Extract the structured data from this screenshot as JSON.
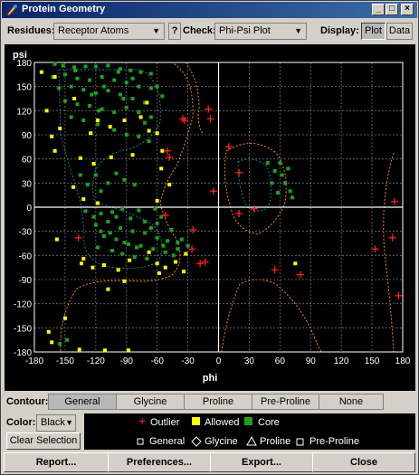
{
  "window": {
    "title": "Protein Geometry"
  },
  "toolbar": {
    "residues_label": "Residues:",
    "residues_value": "Receptor Atoms",
    "help_label": "?",
    "check_label": "Check:",
    "check_value": "Phi-Psi Plot",
    "display_label": "Display:",
    "display_plot": "Plot",
    "display_data": "Data",
    "display_selected": "Plot"
  },
  "chart_data": {
    "type": "scatter",
    "title": "",
    "xlabel": "phi",
    "ylabel": "psi",
    "xlim": [
      -180,
      180
    ],
    "ylim": [
      -180,
      180
    ],
    "xticks": [
      -180,
      -150,
      -120,
      -90,
      -60,
      -30,
      0,
      30,
      60,
      90,
      120,
      150,
      180
    ],
    "yticks": [
      180,
      150,
      120,
      90,
      60,
      30,
      0,
      -30,
      -60,
      -90,
      -120,
      -150,
      -180
    ],
    "grid": true,
    "colors": {
      "core": "#1fa01f",
      "allowed": "#ffff00",
      "outlier": "#ff2020",
      "axis": "#ffffff"
    },
    "series": [
      {
        "name": "Outlier",
        "marker": "plus",
        "points": [
          [
            -137,
            -38
          ],
          [
            -35,
            110
          ],
          [
            -33,
            108
          ],
          [
            -8,
            110
          ],
          [
            -10,
            122
          ],
          [
            -50,
            70
          ],
          [
            -48,
            62
          ],
          [
            -26,
            -52
          ],
          [
            -18,
            -70
          ],
          [
            -13,
            -68
          ],
          [
            -52,
            -10
          ],
          [
            -25,
            -28
          ],
          [
            10,
            75
          ],
          [
            20,
            43
          ],
          [
            -5,
            20
          ],
          [
            35,
            -2
          ],
          [
            20,
            -8
          ],
          [
            55,
            -78
          ],
          [
            80,
            -84
          ],
          [
            153,
            -52
          ],
          [
            170,
            -38
          ],
          [
            172,
            7
          ],
          [
            176,
            -110
          ]
        ]
      },
      {
        "name": "Allowed",
        "marker": "square",
        "points": [
          [
            -160,
            162
          ],
          [
            -173,
            168
          ],
          [
            -168,
            120
          ],
          [
            -163,
            88
          ],
          [
            -160,
            70
          ],
          [
            -155,
            98
          ],
          [
            -141,
            135
          ],
          [
            -125,
            92
          ],
          [
            -118,
            108
          ],
          [
            -106,
            100
          ],
          [
            -92,
            108
          ],
          [
            -76,
            112
          ],
          [
            -68,
            95
          ],
          [
            -70,
            130
          ],
          [
            -60,
            92
          ],
          [
            -55,
            70
          ],
          [
            -135,
            61
          ],
          [
            -122,
            54
          ],
          [
            -105,
            62
          ],
          [
            -84,
            65
          ],
          [
            -56,
            48
          ],
          [
            -142,
            25
          ],
          [
            -132,
            10
          ],
          [
            -118,
            5
          ],
          [
            -60,
            8
          ],
          [
            -48,
            28
          ],
          [
            -158,
            -40
          ],
          [
            -134,
            -70
          ],
          [
            -123,
            -75
          ],
          [
            -112,
            -72
          ],
          [
            -98,
            -78
          ],
          [
            -87,
            -66
          ],
          [
            -68,
            -56
          ],
          [
            -60,
            -70
          ],
          [
            -52,
            -75
          ],
          [
            -42,
            -68
          ],
          [
            -34,
            -80
          ],
          [
            -92,
            -92
          ],
          [
            -166,
            -155
          ],
          [
            -163,
            -168
          ],
          [
            -136,
            -177
          ],
          [
            -111,
            -178
          ],
          [
            -88,
            -178
          ],
          [
            75,
            -70
          ],
          [
            -32,
            -58
          ],
          [
            -58,
            -82
          ],
          [
            -108,
            -102
          ],
          [
            -132,
            -64
          ],
          [
            -150,
            -138
          ]
        ]
      },
      {
        "name": "Core",
        "marker": "square",
        "points": [
          [
            -160,
            178
          ],
          [
            -152,
            176
          ],
          [
            -141,
            174
          ],
          [
            -130,
            175
          ],
          [
            -120,
            175
          ],
          [
            -108,
            176
          ],
          [
            -96,
            172
          ],
          [
            -86,
            170
          ],
          [
            -76,
            168
          ],
          [
            -66,
            166
          ],
          [
            -162,
            162
          ],
          [
            -150,
            165
          ],
          [
            -138,
            160
          ],
          [
            -126,
            158
          ],
          [
            -114,
            162
          ],
          [
            -102,
            158
          ],
          [
            -90,
            155
          ],
          [
            -78,
            150
          ],
          [
            -66,
            148
          ],
          [
            -156,
            148
          ],
          [
            -144,
            150
          ],
          [
            -132,
            146
          ],
          [
            -120,
            142
          ],
          [
            -108,
            145
          ],
          [
            -96,
            140
          ],
          [
            -84,
            135
          ],
          [
            -72,
            130
          ],
          [
            -150,
            132
          ],
          [
            -138,
            128
          ],
          [
            -126,
            126
          ],
          [
            -114,
            122
          ],
          [
            -102,
            118
          ],
          [
            -90,
            124
          ],
          [
            -78,
            118
          ],
          [
            -66,
            112
          ],
          [
            -144,
            112
          ],
          [
            -132,
            108
          ],
          [
            -118,
            103
          ],
          [
            -102,
            96
          ],
          [
            -90,
            90
          ],
          [
            -78,
            88
          ],
          [
            -68,
            82
          ],
          [
            -124,
            140
          ],
          [
            -112,
            150
          ],
          [
            -98,
            168
          ],
          [
            -140,
            170
          ],
          [
            -117,
            120
          ],
          [
            -93,
            135
          ],
          [
            -84,
            160
          ],
          [
            -60,
            150
          ],
          [
            -55,
            138
          ],
          [
            -72,
            105
          ],
          [
            -135,
            40
          ],
          [
            -128,
            28
          ],
          [
            -115,
            20
          ],
          [
            -120,
            40
          ],
          [
            -108,
            30
          ],
          [
            -100,
            42
          ],
          [
            -92,
            34
          ],
          [
            -82,
            28
          ],
          [
            -130,
            -5
          ],
          [
            -115,
            -8
          ],
          [
            -100,
            -12
          ],
          [
            -86,
            -14
          ],
          [
            -72,
            -18
          ],
          [
            -60,
            -20
          ],
          [
            -108,
            -18
          ],
          [
            -120,
            -22
          ],
          [
            -96,
            -26
          ],
          [
            -84,
            -30
          ],
          [
            -72,
            -32
          ],
          [
            -60,
            -38
          ],
          [
            -50,
            -42
          ],
          [
            -40,
            -44
          ],
          [
            -112,
            -36
          ],
          [
            -100,
            -40
          ],
          [
            -88,
            -46
          ],
          [
            -76,
            -48
          ],
          [
            -64,
            -52
          ],
          [
            -52,
            -56
          ],
          [
            -44,
            -60
          ],
          [
            -118,
            -50
          ],
          [
            -104,
            -54
          ],
          [
            -94,
            -58
          ],
          [
            -82,
            -62
          ],
          [
            -70,
            -64
          ],
          [
            -40,
            -52
          ],
          [
            -36,
            -40
          ],
          [
            -30,
            -48
          ],
          [
            -115,
            -30
          ],
          [
            -56,
            -12
          ],
          [
            -78,
            -4
          ],
          [
            -62,
            -2
          ],
          [
            -46,
            -28
          ],
          [
            -104,
            -6
          ],
          [
            -94,
            -2
          ],
          [
            -66,
            -26
          ],
          [
            -54,
            -48
          ],
          [
            -80,
            -50
          ],
          [
            -92,
            -44
          ],
          [
            -106,
            -32
          ],
          [
            -122,
            -12
          ],
          [
            48,
            55
          ],
          [
            55,
            45
          ],
          [
            60,
            55
          ],
          [
            62,
            40
          ],
          [
            65,
            30
          ],
          [
            70,
            20
          ],
          [
            58,
            18
          ],
          [
            52,
            30
          ],
          [
            68,
            48
          ],
          [
            72,
            12
          ],
          [
            -155,
            -170
          ],
          [
            -148,
            -165
          ]
        ]
      }
    ]
  },
  "contour": {
    "label": "Contour:",
    "options": [
      "General",
      "Glycine",
      "Proline",
      "Pre-Proline",
      "None"
    ],
    "selected": "General"
  },
  "color_picker": {
    "label": "Color:",
    "value": "Black"
  },
  "clear_selection_label": "Clear Selection",
  "legend": {
    "outlier": "Outlier",
    "allowed": "Allowed",
    "core": "Core",
    "general": "General",
    "glycine": "Glycine",
    "proline": "Proline",
    "pre_proline": "Pre-Proline"
  },
  "buttons": {
    "report": "Report...",
    "preferences": "Preferences...",
    "export": "Export...",
    "close": "Close"
  }
}
